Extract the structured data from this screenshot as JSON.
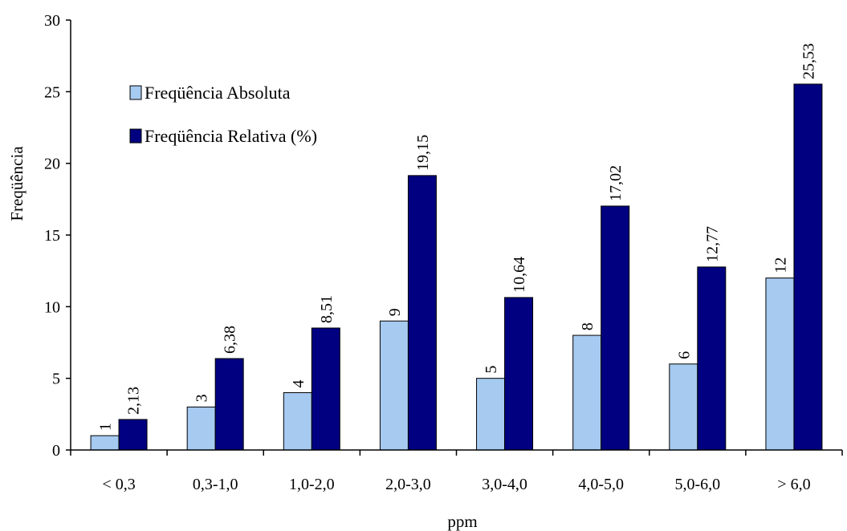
{
  "chart_data": {
    "type": "bar",
    "title": "",
    "xlabel": "ppm",
    "ylabel": "Freqüência",
    "ylim": [
      0,
      30
    ],
    "yticks": [
      0,
      5,
      10,
      15,
      20,
      25,
      30
    ],
    "grid": false,
    "legend_position": "top-left",
    "categories": [
      "< 0,3",
      "0,3-1,0",
      "1,0-2,0",
      "2,0-3,0",
      "3,0-4,0",
      "4,0-5,0",
      "5,0-6,0",
      "> 6,0"
    ],
    "series": [
      {
        "name": "Freqüência Absoluta",
        "color": "#a6caf0",
        "values": [
          1,
          3,
          4,
          9,
          5,
          8,
          6,
          12
        ],
        "labels": [
          "1",
          "3",
          "4",
          "9",
          "5",
          "8",
          "6",
          "12"
        ]
      },
      {
        "name": "Freqüência Relativa (%)",
        "color": "#000080",
        "values": [
          2.13,
          6.38,
          8.51,
          19.15,
          10.64,
          17.02,
          12.77,
          25.53
        ],
        "labels": [
          "2,13",
          "6,38",
          "8,51",
          "19,15",
          "10,64",
          "17,02",
          "12,77",
          "25,53"
        ]
      }
    ]
  }
}
